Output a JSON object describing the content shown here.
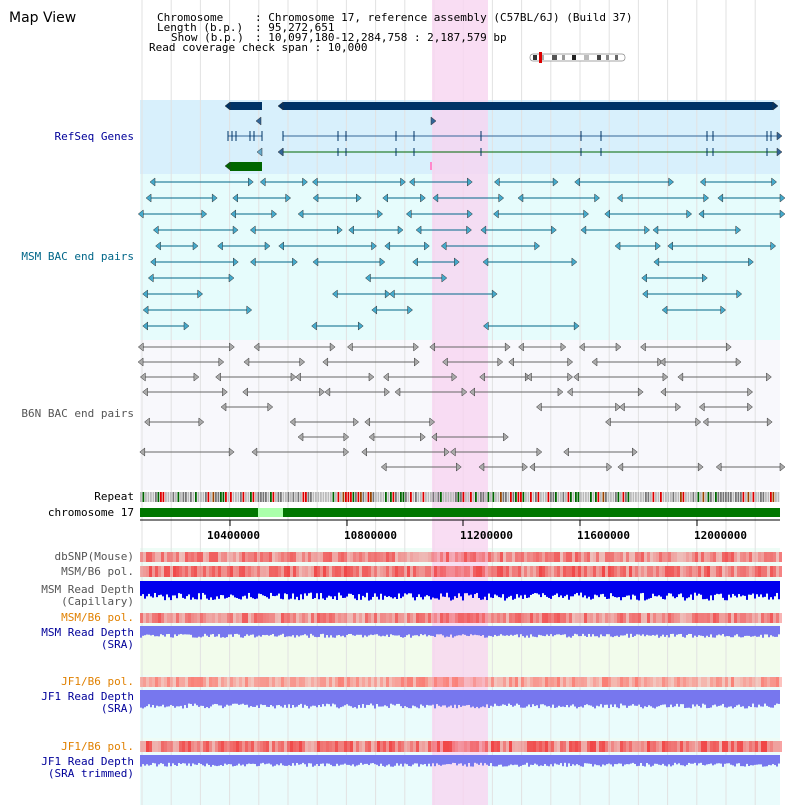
{
  "title": "Map View",
  "header": {
    "chromosome_key": "Chromosome",
    "chromosome_value": ": Chromosome 17, reference assembly (C57BL/6J) (Build 37)",
    "length_key": "Length (b.p.)",
    "length_value": ": 95,272,651",
    "show_key": "Show (b.p.)",
    "show_value": ": 10,097,180-12,284,758 : 2,187,579 bp",
    "coverage_line": "Read coverage check span : 10,000"
  },
  "tracks": {
    "refseq": "RefSeq Genes",
    "msm_bac": "MSM BAC end pairs",
    "b6n_bac": "B6N BAC end pairs",
    "repeat": "Repeat",
    "chromosome": "chromosome 17",
    "dbsnp": "dbSNP(Mouse)",
    "msm_b6_pol_1": "MSM/B6 pol.",
    "msm_depth_cap_1": "MSM Read Depth",
    "msm_depth_cap_2": "(Capillary)",
    "msm_b6_pol_2": "MSM/B6 pol.",
    "msm_depth_sra_1": "MSM Read Depth",
    "msm_depth_sra_2": "(SRA)",
    "jf1_b6_pol_1": "JF1/B6 pol.",
    "jf1_depth_1": "JF1 Read Depth",
    "jf1_depth_2": "(SRA)",
    "jf1_b6_pol_2": "JF1/B6 pol.",
    "jf1_trim_1": "JF1 Read Depth",
    "jf1_trim_2": "(SRA trimmed)"
  },
  "axis": {
    "ticks": [
      "10400000",
      "10800000",
      "11200000",
      "11600000",
      "12000000"
    ]
  },
  "colors": {
    "refseq_bg": "#d8f0fc",
    "msm_bg": "#e6fcfc",
    "b6n_bg": "#f8f8fc",
    "highlight": "#f8d4f0",
    "gene_dark": "#003366",
    "gene_green": "#006600",
    "msm_line": "#006688",
    "b6n_line": "#555555",
    "label_blue": "#000099",
    "label_teal": "#006688",
    "label_gray": "#555555",
    "label_orange": "#e08000"
  }
}
